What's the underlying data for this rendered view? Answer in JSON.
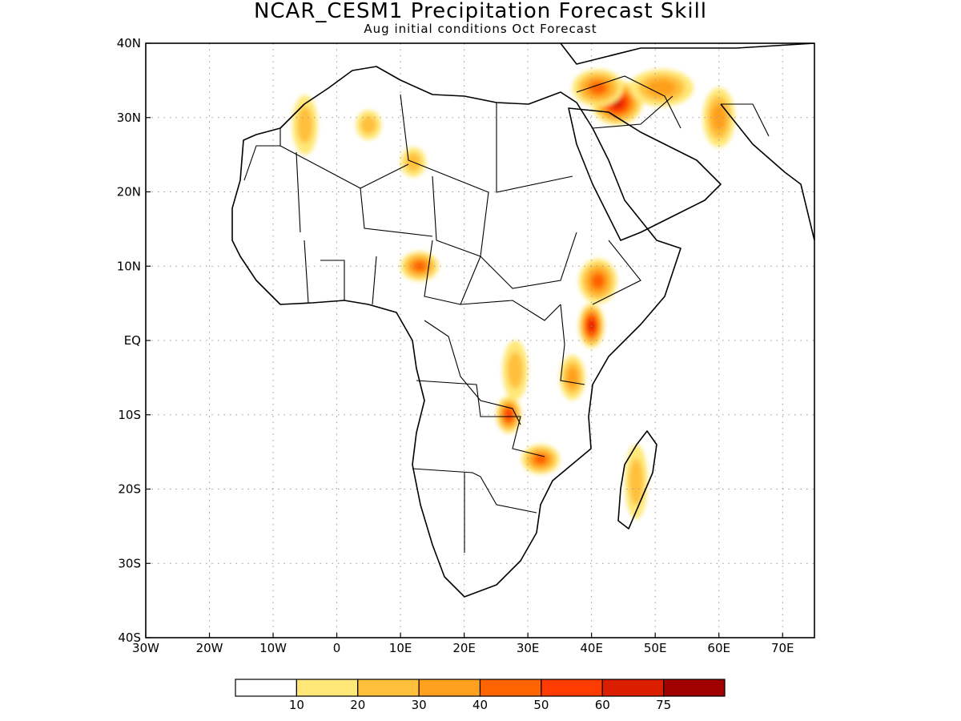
{
  "header": {
    "title": "NCAR_CESM1 Precipitation Forecast Skill",
    "subtitle": "Aug initial conditions  Oct Forecast"
  },
  "map": {
    "lon_range": [
      -30,
      75
    ],
    "lat_range": [
      -40,
      40
    ],
    "lon_ticks": [
      {
        "value": -30,
        "label": "30W"
      },
      {
        "value": -20,
        "label": "20W"
      },
      {
        "value": -10,
        "label": "10W"
      },
      {
        "value": 0,
        "label": "0"
      },
      {
        "value": 10,
        "label": "10E"
      },
      {
        "value": 20,
        "label": "20E"
      },
      {
        "value": 30,
        "label": "30E"
      },
      {
        "value": 40,
        "label": "40E"
      },
      {
        "value": 50,
        "label": "50E"
      },
      {
        "value": 60,
        "label": "60E"
      },
      {
        "value": 70,
        "label": "70E"
      }
    ],
    "lat_ticks": [
      {
        "value": 40,
        "label": "40N"
      },
      {
        "value": 30,
        "label": "30N"
      },
      {
        "value": 20,
        "label": "20N"
      },
      {
        "value": 10,
        "label": "10N"
      },
      {
        "value": 0,
        "label": "EQ"
      },
      {
        "value": -10,
        "label": "10S"
      },
      {
        "value": -20,
        "label": "20S"
      },
      {
        "value": -30,
        "label": "30S"
      },
      {
        "value": -40,
        "label": "40S"
      }
    ],
    "gridlines": true
  },
  "colorbar": {
    "colors": [
      "#ffffff",
      "#ffe878",
      "#ffc03c",
      "#ffa01e",
      "#ff6400",
      "#ff3c00",
      "#dc1e00",
      "#a00000"
    ],
    "labels": [
      "10",
      "20",
      "30",
      "40",
      "50",
      "60",
      "75"
    ]
  },
  "skill_regions": [
    {
      "lon": 44,
      "lat": 32,
      "rx": 4,
      "ry": 3,
      "level": 6
    },
    {
      "lon": 41,
      "lat": 34,
      "rx": 4,
      "ry": 2.5,
      "level": 4
    },
    {
      "lon": 51,
      "lat": 34,
      "rx": 5,
      "ry": 2.5,
      "level": 3
    },
    {
      "lon": 60,
      "lat": 30,
      "rx": 2.5,
      "ry": 4,
      "level": 3
    },
    {
      "lon": 40,
      "lat": 2,
      "rx": 2,
      "ry": 3,
      "level": 6
    },
    {
      "lon": 41,
      "lat": 8,
      "rx": 3,
      "ry": 3,
      "level": 4
    },
    {
      "lon": 13,
      "lat": 10,
      "rx": 3,
      "ry": 2,
      "level": 4
    },
    {
      "lon": 27,
      "lat": -10,
      "rx": 2,
      "ry": 2.5,
      "level": 5
    },
    {
      "lon": 32,
      "lat": -16,
      "rx": 3,
      "ry": 2,
      "level": 4
    },
    {
      "lon": 28,
      "lat": -4,
      "rx": 2,
      "ry": 4,
      "level": 2
    },
    {
      "lon": 47,
      "lat": -19,
      "rx": 1.8,
      "ry": 5,
      "level": 2
    },
    {
      "lon": 37,
      "lat": -5,
      "rx": 2,
      "ry": 3,
      "level": 3
    },
    {
      "lon": 5,
      "lat": 29,
      "rx": 2,
      "ry": 2,
      "level": 2
    },
    {
      "lon": -5,
      "lat": 29,
      "rx": 2,
      "ry": 4,
      "level": 2
    },
    {
      "lon": 12,
      "lat": 24,
      "rx": 2,
      "ry": 2,
      "level": 2
    }
  ]
}
